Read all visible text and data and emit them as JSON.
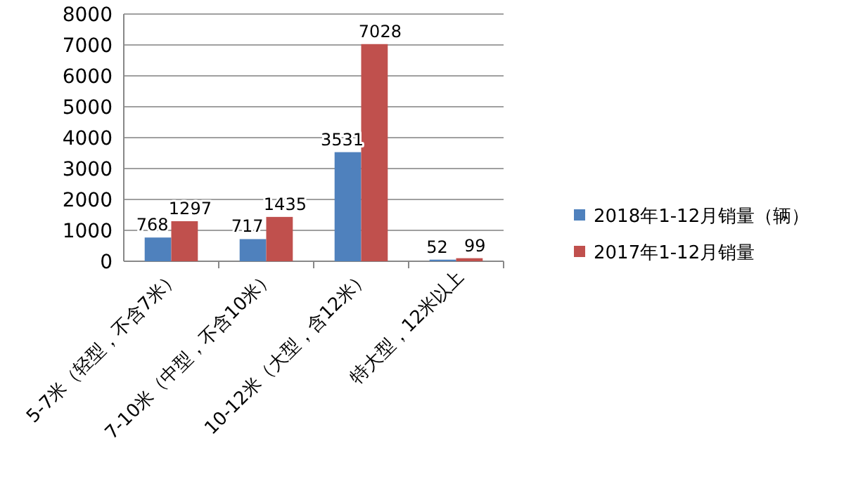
{
  "chart_data": {
    "type": "bar",
    "categories": [
      "5-7米（轻型，不含7米）",
      "7-10米（中型，不含10米）",
      "10-12米（大型，含12米）",
      "特大型，12米以上"
    ],
    "series": [
      {
        "name": "2018年1-12月销量（辆）",
        "color": "#4f81bd",
        "values": [
          768,
          717,
          3531,
          52
        ]
      },
      {
        "name": "2017年1-12月销量",
        "color": "#c0504d",
        "values": [
          1297,
          1435,
          7028,
          99
        ]
      }
    ],
    "ylim": [
      0,
      8000
    ],
    "yticks": [
      0,
      1000,
      2000,
      3000,
      4000,
      5000,
      6000,
      7000,
      8000
    ],
    "grid": "y",
    "legend": "right",
    "data_labels": true
  }
}
